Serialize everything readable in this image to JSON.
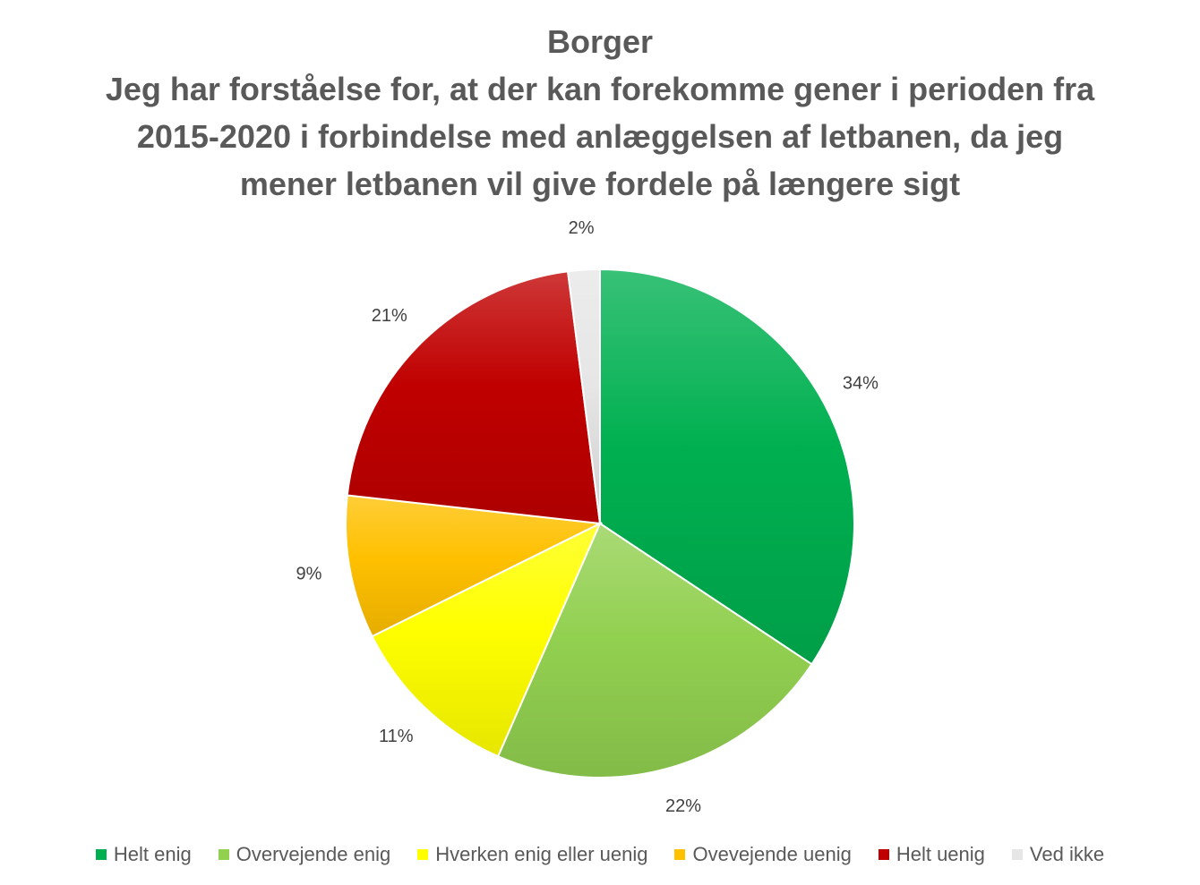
{
  "chart_data": {
    "type": "pie",
    "title": [
      "Borger",
      "Jeg har forståelse for, at der kan forekomme gener i perioden fra",
      "2015-2020 i forbindelse med anlæggelsen af letbanen, da jeg",
      "mener letbanen vil give fordele på længere sigt"
    ],
    "legend_position": "bottom",
    "slices": [
      {
        "name": "Helt enig",
        "value": 34,
        "label": "34%",
        "color": "#00b050"
      },
      {
        "name": "Overvejende enig",
        "value": 22,
        "label": "22%",
        "color": "#92d050"
      },
      {
        "name": "Hverken enig eller uenig",
        "value": 11,
        "label": "11%",
        "color": "#ffff00"
      },
      {
        "name": "Ovevejende uenig",
        "value": 9,
        "label": "9%",
        "color": "#ffc000"
      },
      {
        "name": "Helt uenig",
        "value": 21,
        "label": "21%",
        "color": "#c00000"
      },
      {
        "name": "Ved ikke",
        "value": 2,
        "label": "2%",
        "color": "#e7e6e6"
      }
    ]
  }
}
